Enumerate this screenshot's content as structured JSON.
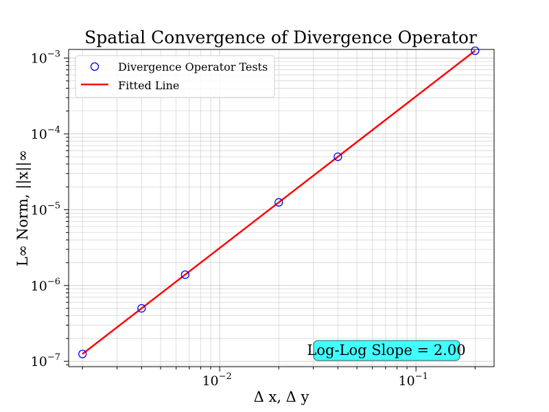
{
  "chart_data": {
    "type": "scatter",
    "title": "Spatial Convergence of Divergence Operator",
    "xlabel": "Δ x, Δ y",
    "ylabel": "L∞ Norm, ||x||∞",
    "xscale": "log",
    "yscale": "log",
    "xlim": [
      0.0017,
      0.25
    ],
    "ylim": [
      8.5e-08,
      0.0013
    ],
    "grid": true,
    "legend_position": "top-left",
    "xticks": [
      {
        "value": 0.01,
        "base": "10",
        "exp": "−2"
      },
      {
        "value": 0.1,
        "base": "10",
        "exp": "−1"
      }
    ],
    "yticks": [
      {
        "value": 1e-07,
        "base": "10",
        "exp": "−7"
      },
      {
        "value": 1e-06,
        "base": "10",
        "exp": "−6"
      },
      {
        "value": 1e-05,
        "base": "10",
        "exp": "−5"
      },
      {
        "value": 0.0001,
        "base": "10",
        "exp": "−4"
      },
      {
        "value": 0.001,
        "base": "10",
        "exp": "−3"
      }
    ],
    "series": [
      {
        "name": "Divergence Operator Tests",
        "kind": "markers",
        "marker": "open-circle",
        "color": "#0000ff",
        "x": [
          0.002,
          0.004,
          0.00667,
          0.02,
          0.04,
          0.2
        ],
        "y": [
          1.25e-07,
          5e-07,
          1.39e-06,
          1.25e-05,
          5e-05,
          0.00125
        ]
      },
      {
        "name": "Fitted Line",
        "kind": "line",
        "color": "#ff0000",
        "x": [
          0.002,
          0.2
        ],
        "y": [
          1.25e-07,
          0.00125
        ]
      }
    ],
    "annotation": "Log-Log Slope = 2.00"
  },
  "colors": {
    "annotation_box_fill": "#40ffff",
    "annotation_box_edge": "#2a6060",
    "grid": "#c8c8c8"
  }
}
